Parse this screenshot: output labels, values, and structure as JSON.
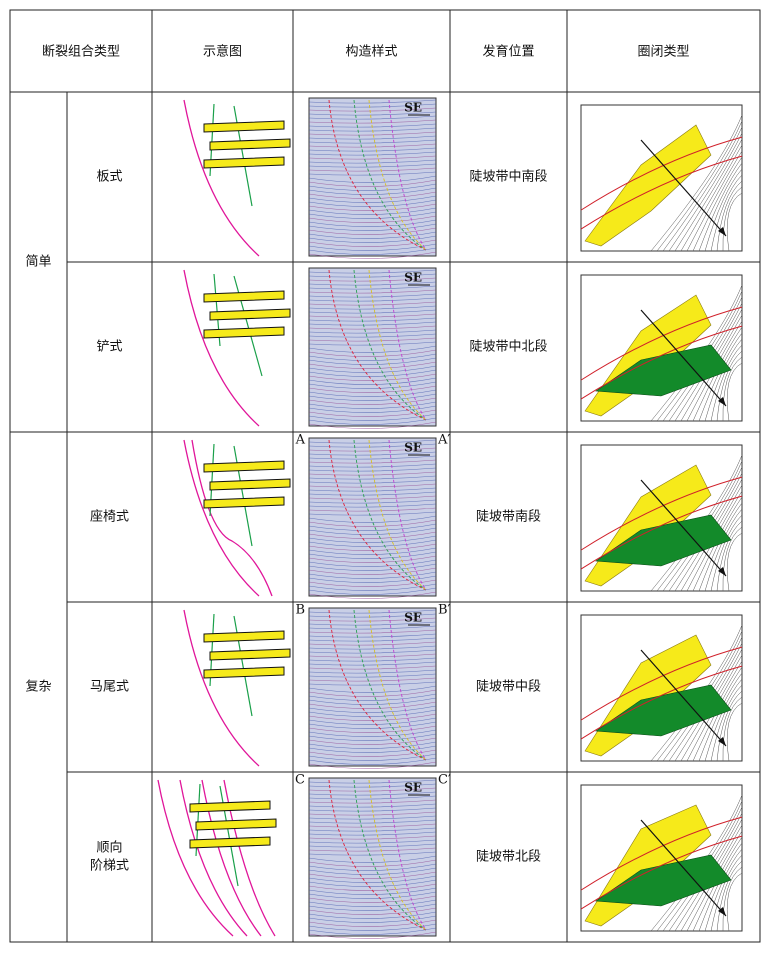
{
  "header": {
    "columns": [
      "断裂组合类型",
      "示意图",
      "构造样式",
      "发育位置",
      "圈闭类型"
    ]
  },
  "groups": [
    {
      "label": "简单",
      "rows": [
        {
          "type_lines": [
            "板式"
          ],
          "position": "陡坡带中南段",
          "section_labels": {
            "corner": "SE"
          }
        },
        {
          "type_lines": [
            "铲式"
          ],
          "position": "陡坡带中北段",
          "section_labels": {
            "corner": "SE"
          }
        }
      ]
    },
    {
      "label": "复杂",
      "rows": [
        {
          "type_lines": [
            "座椅式"
          ],
          "position": "陡坡带南段",
          "section_labels": {
            "left": "A",
            "right": "A′",
            "corner": "SE"
          }
        },
        {
          "type_lines": [
            "马尾式"
          ],
          "position": "陡坡带中段",
          "section_labels": {
            "left": "B",
            "right": "B′",
            "corner": "SE"
          }
        },
        {
          "type_lines": [
            "顺向",
            "阶梯式"
          ],
          "position": "陡坡带北段",
          "section_labels": {
            "left": "C",
            "right": "C′",
            "corner": "SE"
          }
        }
      ]
    }
  ]
}
